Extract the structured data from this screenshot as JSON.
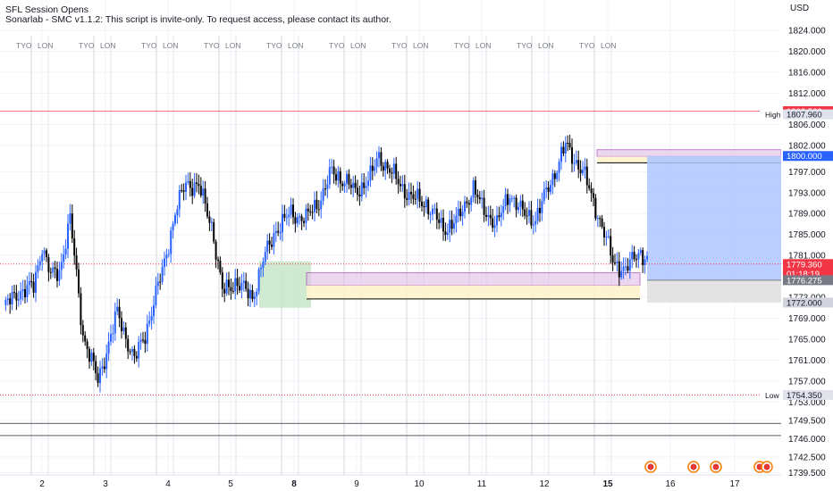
{
  "header": {
    "indicator_1": "SFL Session Opens",
    "indicator_2": "Sonarlab - SMC v1.1.2: This script is invite-only. To request access, please contact its author."
  },
  "chart_data": {
    "type": "candlestick",
    "currency": "USD",
    "ylim": [
      1738.0,
      1829.0
    ],
    "y_ticks": [
      "1824.000",
      "1820.000",
      "1816.000",
      "1812.000",
      "1806.000",
      "1802.000",
      "1797.000",
      "1793.000",
      "1789.000",
      "1785.000",
      "1781.000",
      "1773.000",
      "1769.000",
      "1765.000",
      "1761.000",
      "1757.000",
      "1753.000",
      "1749.500",
      "1746.000",
      "1742.500",
      "1739.500"
    ],
    "x_ticks": [
      {
        "label": "2",
        "bold": false
      },
      {
        "label": "3",
        "bold": false
      },
      {
        "label": "4",
        "bold": false
      },
      {
        "label": "5",
        "bold": false
      },
      {
        "label": "8",
        "bold": true
      },
      {
        "label": "9",
        "bold": false
      },
      {
        "label": "10",
        "bold": false
      },
      {
        "label": "11",
        "bold": false
      },
      {
        "label": "12",
        "bold": false
      },
      {
        "label": "15",
        "bold": true
      },
      {
        "label": "16",
        "bold": false
      },
      {
        "label": "17",
        "bold": false
      }
    ],
    "session_markers": [
      "TYO",
      "LON"
    ],
    "price_labels": [
      {
        "name": "previous-high",
        "text": "1808.563",
        "color": "#f23645",
        "value": 1808.563
      },
      {
        "name": "high",
        "text": "1807.960",
        "tag": "High",
        "color": "#e0e3eb",
        "value": 1807.96
      },
      {
        "name": "take-profit",
        "text": "1800.000",
        "color": "#2962ff",
        "value": 1800.0
      },
      {
        "name": "current-price",
        "text": "1779.360",
        "countdown": "01:18:19",
        "color": "#f23645",
        "value": 1779.36
      },
      {
        "name": "entry",
        "text": "1776.275",
        "color": "#787b86",
        "value": 1776.275
      },
      {
        "name": "stop",
        "text": "1772.000",
        "color": "#d1d4dc",
        "value": 1772.0
      },
      {
        "name": "low",
        "text": "1754.350",
        "tag": "Low",
        "color": "#e0e3eb",
        "value": 1754.35
      }
    ],
    "horizontal_lines": [
      1808.563,
      1779.36,
      1754.35,
      1748.9,
      1746.6
    ],
    "colors": {
      "up": "#2962ff",
      "down": "#000000",
      "grid": "#f0f3fa",
      "session_line": "#d1d4dc",
      "zone_purple": "#e1bee7",
      "zone_yellow": "#fff3cd",
      "zone_green": "#c8e6c9",
      "position_blue": "#aec6ff",
      "position_gray": "#e0e0e0"
    }
  }
}
